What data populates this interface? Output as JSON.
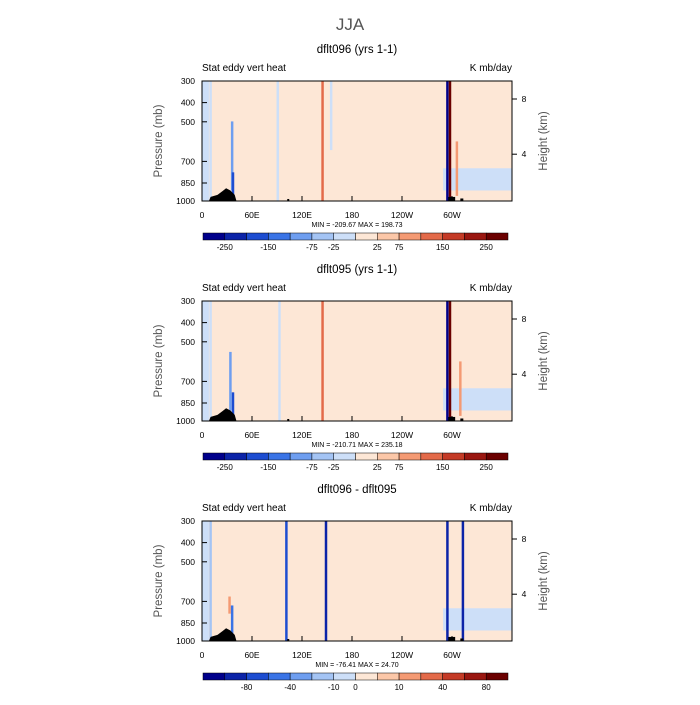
{
  "figure": {
    "title": "JJA"
  },
  "colormap": [
    "#00008b",
    "#0b23a8",
    "#1d4dd1",
    "#3a74e6",
    "#6e9ef0",
    "#a4c4f4",
    "#cddff8",
    "#fde7d6",
    "#fbc7a8",
    "#f49a73",
    "#e36a49",
    "#c43a26",
    "#9a1610",
    "#6b0000"
  ],
  "land_color": "#000000",
  "axes": {
    "y_left_label": "Pressure (mb)",
    "y_right_label": "Height (km)",
    "y_ticks": [
      "300",
      "400",
      "500",
      "700",
      "850",
      "1000"
    ],
    "y_right_ticks": [
      "8",
      "4"
    ],
    "x_ticks": [
      "0",
      "60E",
      "120E",
      "180",
      "120W",
      "60W"
    ]
  },
  "chart_data": [
    {
      "type": "heatmap",
      "title": "dflt096 (yrs 1-1)",
      "left_label": "Stat eddy vert heat",
      "right_label": "K mb/day",
      "minmax": "MIN = -209.67   MAX = 198.73",
      "colorbar_labels": [
        "-250",
        "-150",
        "-75",
        "-25",
        "25",
        "75",
        "150",
        "250"
      ],
      "features": [
        {
          "lon": 10,
          "p_top": 300,
          "p_bot": 1000,
          "level": 6
        },
        {
          "lon": 35,
          "p_top": 450,
          "p_bot": 900,
          "level": 4
        },
        {
          "lon": 36,
          "p_top": 750,
          "p_bot": 1000,
          "level": 2
        },
        {
          "lon": 88,
          "p_top": 300,
          "p_bot": 1000,
          "level": 6
        },
        {
          "lon": 140,
          "p_top": 300,
          "p_bot": 1000,
          "level": 10
        },
        {
          "lon": 150,
          "p_top": 300,
          "p_bot": 600,
          "level": 6
        },
        {
          "lon": 285,
          "p_top": 300,
          "p_bot": 1000,
          "level": 0
        },
        {
          "lon": 288,
          "p_top": 300,
          "p_bot": 1000,
          "level": 13
        },
        {
          "lon": 296,
          "p_top": 550,
          "p_bot": 950,
          "level": 9
        }
      ]
    },
    {
      "type": "heatmap",
      "title": "dflt095 (yrs 1-1)",
      "left_label": "Stat eddy vert heat",
      "right_label": "K mb/day",
      "minmax": "MIN = -210.71   MAX = 235.18",
      "colorbar_labels": [
        "-250",
        "-150",
        "-75",
        "-25",
        "25",
        "75",
        "150",
        "250"
      ],
      "features": [
        {
          "lon": 10,
          "p_top": 300,
          "p_bot": 1000,
          "level": 6
        },
        {
          "lon": 33,
          "p_top": 500,
          "p_bot": 900,
          "level": 4
        },
        {
          "lon": 36,
          "p_top": 750,
          "p_bot": 1000,
          "level": 2
        },
        {
          "lon": 90,
          "p_top": 300,
          "p_bot": 1000,
          "level": 6
        },
        {
          "lon": 140,
          "p_top": 300,
          "p_bot": 1000,
          "level": 10
        },
        {
          "lon": 285,
          "p_top": 300,
          "p_bot": 1000,
          "level": 0
        },
        {
          "lon": 288,
          "p_top": 300,
          "p_bot": 1000,
          "level": 13
        },
        {
          "lon": 300,
          "p_top": 550,
          "p_bot": 950,
          "level": 9
        }
      ]
    },
    {
      "type": "heatmap",
      "title": "dflt096 - dflt095",
      "left_label": "Stat eddy vert heat",
      "right_label": "K mb/day",
      "minmax": "MIN = -76.41   MAX =  24.70",
      "colorbar_labels": [
        "-80",
        "-40",
        "-10",
        "0",
        "10",
        "40",
        "80"
      ],
      "features": [
        {
          "lon": 10,
          "p_top": 300,
          "p_bot": 1000,
          "level": 5
        },
        {
          "lon": 32,
          "p_top": 640,
          "p_bot": 760,
          "level": 9
        },
        {
          "lon": 35,
          "p_top": 700,
          "p_bot": 1000,
          "level": 3
        },
        {
          "lon": 98,
          "p_top": 300,
          "p_bot": 1000,
          "level": 2
        },
        {
          "lon": 144,
          "p_top": 300,
          "p_bot": 1000,
          "level": 1
        },
        {
          "lon": 285,
          "p_top": 300,
          "p_bot": 1000,
          "level": 1
        },
        {
          "lon": 303,
          "p_top": 300,
          "p_bot": 1000,
          "level": 1
        }
      ]
    }
  ]
}
